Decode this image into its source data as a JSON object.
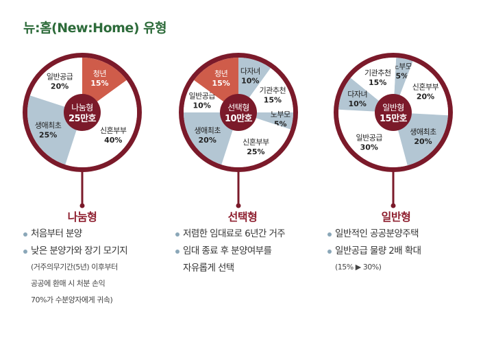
{
  "title": "뉴:홈(New:Home) 유형",
  "colors": {
    "ring": "#7b1a2a",
    "red": "#cf5c4a",
    "blue": "#b3c6d3",
    "white": "#ffffff",
    "center": "#7b1a2a",
    "title": "#2d6b3a",
    "heading": "#8e1f2f"
  },
  "chart_data": [
    {
      "type": "pie",
      "center_label": [
        "나눔형",
        "25만호"
      ],
      "slices": [
        {
          "label": "청년",
          "value": 15,
          "color": "#cf5c4a"
        },
        {
          "label": "신혼부부",
          "value": 40,
          "color": "#ffffff"
        },
        {
          "label": "생애최초",
          "value": 25,
          "color": "#b3c6d3"
        },
        {
          "label": "일반공급",
          "value": 20,
          "color": "#ffffff"
        }
      ]
    },
    {
      "type": "pie",
      "center_label": [
        "선택형",
        "10만호"
      ],
      "slices": [
        {
          "label": "다자녀",
          "value": 10,
          "color": "#b3c6d3"
        },
        {
          "label": "기관추천",
          "value": 15,
          "color": "#ffffff"
        },
        {
          "label": "노부모",
          "value": 5,
          "color": "#b3c6d3"
        },
        {
          "label": "신혼부부",
          "value": 25,
          "color": "#ffffff"
        },
        {
          "label": "생애최초",
          "value": 20,
          "color": "#b3c6d3"
        },
        {
          "label": "일반공급",
          "value": 10,
          "color": "#ffffff"
        },
        {
          "label": "청년",
          "value": 15,
          "color": "#cf5c4a"
        }
      ]
    },
    {
      "type": "pie",
      "center_label": [
        "일반형",
        "15만호"
      ],
      "slices": [
        {
          "label": "노부모",
          "value": 5,
          "color": "#b3c6d3"
        },
        {
          "label": "신혼부부",
          "value": 20,
          "color": "#ffffff"
        },
        {
          "label": "생애최초",
          "value": 20,
          "color": "#b3c6d3"
        },
        {
          "label": "일반공급",
          "value": 30,
          "color": "#ffffff"
        },
        {
          "label": "다자녀",
          "value": 10,
          "color": "#b3c6d3"
        },
        {
          "label": "기관추천",
          "value": 15,
          "color": "#ffffff"
        }
      ]
    }
  ],
  "columns": [
    {
      "heading": "나눔형",
      "bullets": [
        [
          "처음부터 분양"
        ],
        [
          "낮은 분양가와 장기 모기지"
        ]
      ],
      "note": [
        "(거주의무기간(5년) 이후부터",
        "공공에 환매 시 처분 손익",
        "70%가 수분양자에게 귀속)"
      ]
    },
    {
      "heading": "선택형",
      "bullets": [
        [
          "저렴한 임대료로 6년간 거주"
        ],
        [
          "임대 종료 후 분양여부를",
          "자유롭게 선택"
        ]
      ],
      "note": []
    },
    {
      "heading": "일반형",
      "bullets": [
        [
          "일반적인 공공분양주택"
        ],
        [
          "일반공급 물량 2배 확대"
        ]
      ],
      "note": [
        "(15% ▶ 30%)"
      ]
    }
  ]
}
